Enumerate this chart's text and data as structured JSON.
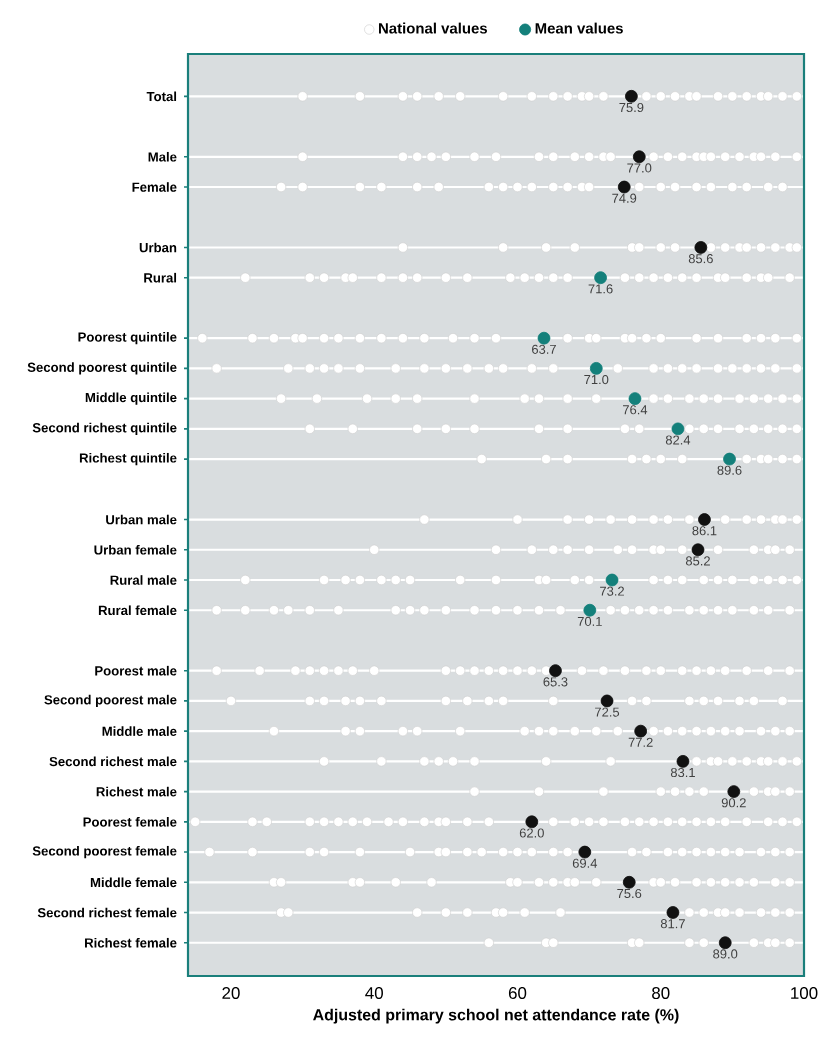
{
  "chart_data": {
    "type": "scatter",
    "orientation": "horizontal",
    "xlabel": "Adjusted primary school net attendance rate (%)",
    "categories": [
      "Total",
      null,
      "Male",
      "Female",
      null,
      "Urban",
      "Rural",
      null,
      "Poorest quintile",
      "Second poorest quintile",
      "Middle quintile",
      "Second richest quintile",
      "Richest quintile",
      null,
      "Urban male",
      "Urban female",
      "Rural male",
      "Rural female",
      null,
      "Poorest male",
      "Second poorest male",
      "Middle male",
      "Second richest male",
      "Richest male",
      "Poorest female",
      "Second poorest female",
      "Middle female",
      "Second richest female",
      "Richest female"
    ],
    "xlim": [
      14,
      100
    ],
    "xticks": [
      20,
      40,
      60,
      80,
      100
    ],
    "grid": "y",
    "legend": "top",
    "marker": "circle",
    "series": [
      {
        "name": "National values",
        "color": "#ffffff",
        "x": [
          "Total",
          "Total",
          "Total",
          "Total",
          "Total",
          "Total",
          "Total",
          "Total",
          "Total",
          "Total",
          "Total",
          "Total",
          "Total",
          "Total",
          "Total",
          "Total",
          "Total",
          "Total",
          "Total",
          "Total",
          "Total",
          "Total",
          "Total",
          "Total",
          "Total",
          "Total",
          "Male",
          "Male",
          "Male",
          "Male",
          "Male",
          "Male",
          "Male",
          "Male",
          "Male",
          "Male",
          "Male",
          "Male",
          "Male",
          "Male",
          "Male",
          "Male",
          "Male",
          "Male",
          "Male",
          "Male",
          "Male",
          "Male",
          "Male",
          "Male",
          "Male",
          "Female",
          "Female",
          "Female",
          "Female",
          "Female",
          "Female",
          "Female",
          "Female",
          "Female",
          "Female",
          "Female",
          "Female",
          "Female",
          "Female",
          "Female",
          "Female",
          "Female",
          "Female",
          "Female",
          "Female",
          "Female",
          "Female",
          "Female",
          "Female",
          "Urban",
          "Urban",
          "Urban",
          "Urban",
          "Urban",
          "Urban",
          "Urban",
          "Urban",
          "Urban",
          "Urban",
          "Urban",
          "Urban",
          "Urban",
          "Urban",
          "Urban",
          "Urban",
          "Rural",
          "Rural",
          "Rural",
          "Rural",
          "Rural",
          "Rural",
          "Rural",
          "Rural",
          "Rural",
          "Rural",
          "Rural",
          "Rural",
          "Rural",
          "Rural",
          "Rural",
          "Rural",
          "Rural",
          "Rural",
          "Rural",
          "Rural",
          "Rural",
          "Rural",
          "Rural",
          "Rural",
          "Rural",
          "Rural",
          "Rural",
          "Poorest quintile",
          "Poorest quintile",
          "Poorest quintile",
          "Poorest quintile",
          "Poorest quintile",
          "Poorest quintile",
          "Poorest quintile",
          "Poorest quintile",
          "Poorest quintile",
          "Poorest quintile",
          "Poorest quintile",
          "Poorest quintile",
          "Poorest quintile",
          "Poorest quintile",
          "Poorest quintile",
          "Poorest quintile",
          "Poorest quintile",
          "Poorest quintile",
          "Poorest quintile",
          "Poorest quintile",
          "Poorest quintile",
          "Poorest quintile",
          "Poorest quintile",
          "Poorest quintile",
          "Poorest quintile",
          "Poorest quintile",
          "Poorest quintile",
          "Second poorest quintile",
          "Second poorest quintile",
          "Second poorest quintile",
          "Second poorest quintile",
          "Second poorest quintile",
          "Second poorest quintile",
          "Second poorest quintile",
          "Second poorest quintile",
          "Second poorest quintile",
          "Second poorest quintile",
          "Second poorest quintile",
          "Second poorest quintile",
          "Second poorest quintile",
          "Second poorest quintile",
          "Second poorest quintile",
          "Second poorest quintile",
          "Second poorest quintile",
          "Second poorest quintile",
          "Second poorest quintile",
          "Second poorest quintile",
          "Second poorest quintile",
          "Second poorest quintile",
          "Second poorest quintile",
          "Second poorest quintile",
          "Second poorest quintile",
          "Middle quintile",
          "Middle quintile",
          "Middle quintile",
          "Middle quintile",
          "Middle quintile",
          "Middle quintile",
          "Middle quintile",
          "Middle quintile",
          "Middle quintile",
          "Middle quintile",
          "Middle quintile",
          "Middle quintile",
          "Middle quintile",
          "Middle quintile",
          "Middle quintile",
          "Middle quintile",
          "Middle quintile",
          "Middle quintile",
          "Middle quintile",
          "Middle quintile",
          "Second richest quintile",
          "Second richest quintile",
          "Second richest quintile",
          "Second richest quintile",
          "Second richest quintile",
          "Second richest quintile",
          "Second richest quintile",
          "Second richest quintile",
          "Second richest quintile",
          "Second richest quintile",
          "Second richest quintile",
          "Second richest quintile",
          "Second richest quintile",
          "Second richest quintile",
          "Second richest quintile",
          "Second richest quintile",
          "Second richest quintile",
          "Richest quintile",
          "Richest quintile",
          "Richest quintile",
          "Richest quintile",
          "Richest quintile",
          "Richest quintile",
          "Richest quintile",
          "Richest quintile",
          "Richest quintile",
          "Richest quintile",
          "Richest quintile",
          "Richest quintile",
          "Urban male",
          "Urban male",
          "Urban male",
          "Urban male",
          "Urban male",
          "Urban male",
          "Urban male",
          "Urban male",
          "Urban male",
          "Urban male",
          "Urban male",
          "Urban male",
          "Urban male",
          "Urban male",
          "Urban male",
          "Urban female",
          "Urban female",
          "Urban female",
          "Urban female",
          "Urban female",
          "Urban female",
          "Urban female",
          "Urban female",
          "Urban female",
          "Urban female",
          "Urban female",
          "Urban female",
          "Urban female",
          "Urban female",
          "Urban female",
          "Urban female",
          "Rural male",
          "Rural male",
          "Rural male",
          "Rural male",
          "Rural male",
          "Rural male",
          "Rural male",
          "Rural male",
          "Rural male",
          "Rural male",
          "Rural male",
          "Rural male",
          "Rural male",
          "Rural male",
          "Rural male",
          "Rural male",
          "Rural male",
          "Rural male",
          "Rural male",
          "Rural male",
          "Rural male",
          "Rural male",
          "Rural male",
          "Rural female",
          "Rural female",
          "Rural female",
          "Rural female",
          "Rural female",
          "Rural female",
          "Rural female",
          "Rural female",
          "Rural female",
          "Rural female",
          "Rural female",
          "Rural female",
          "Rural female",
          "Rural female",
          "Rural female",
          "Rural female",
          "Rural female",
          "Rural female",
          "Rural female",
          "Rural female",
          "Rural female",
          "Rural female",
          "Rural female",
          "Rural female",
          "Rural female",
          "Rural female",
          "Rural female",
          "Poorest male",
          "Poorest male",
          "Poorest male",
          "Poorest male",
          "Poorest male",
          "Poorest male",
          "Poorest male",
          "Poorest male",
          "Poorest male",
          "Poorest male",
          "Poorest male",
          "Poorest male",
          "Poorest male",
          "Poorest male",
          "Poorest male",
          "Poorest male",
          "Poorest male",
          "Poorest male",
          "Poorest male",
          "Poorest male",
          "Poorest male",
          "Poorest male",
          "Poorest male",
          "Poorest male",
          "Poorest male",
          "Poorest male",
          "Poorest male",
          "Poorest male",
          "Second poorest male",
          "Second poorest male",
          "Second poorest male",
          "Second poorest male",
          "Second poorest male",
          "Second poorest male",
          "Second poorest male",
          "Second poorest male",
          "Second poorest male",
          "Second poorest male",
          "Second poorest male",
          "Second poorest male",
          "Second poorest male",
          "Second poorest male",
          "Second poorest male",
          "Second poorest male",
          "Second poorest male",
          "Second poorest male",
          "Second poorest male",
          "Middle male",
          "Middle male",
          "Middle male",
          "Middle male",
          "Middle male",
          "Middle male",
          "Middle male",
          "Middle male",
          "Middle male",
          "Middle male",
          "Middle male",
          "Middle male",
          "Middle male",
          "Middle male",
          "Middle male",
          "Middle male",
          "Middle male",
          "Middle male",
          "Middle male",
          "Middle male",
          "Middle male",
          "Middle male",
          "Second richest male",
          "Second richest male",
          "Second richest male",
          "Second richest male",
          "Second richest male",
          "Second richest male",
          "Second richest male",
          "Second richest male",
          "Second richest male",
          "Second richest male",
          "Second richest male",
          "Second richest male",
          "Second richest male",
          "Second richest male",
          "Second richest male",
          "Second richest male",
          "Second richest male",
          "Richest male",
          "Richest male",
          "Richest male",
          "Richest male",
          "Richest male",
          "Richest male",
          "Richest male",
          "Richest male",
          "Richest male",
          "Richest male",
          "Richest male",
          "Poorest female",
          "Poorest female",
          "Poorest female",
          "Poorest female",
          "Poorest female",
          "Poorest female",
          "Poorest female",
          "Poorest female",
          "Poorest female",
          "Poorest female",
          "Poorest female",
          "Poorest female",
          "Poorest female",
          "Poorest female",
          "Poorest female",
          "Poorest female",
          "Poorest female",
          "Poorest female",
          "Poorest female",
          "Poorest female",
          "Poorest female",
          "Poorest female",
          "Poorest female",
          "Poorest female",
          "Poorest female",
          "Poorest female",
          "Poorest female",
          "Poorest female",
          "Poorest female",
          "Poorest female",
          "Poorest female",
          "Second poorest female",
          "Second poorest female",
          "Second poorest female",
          "Second poorest female",
          "Second poorest female",
          "Second poorest female",
          "Second poorest female",
          "Second poorest female",
          "Second poorest female",
          "Second poorest female",
          "Second poorest female",
          "Second poorest female",
          "Second poorest female",
          "Second poorest female",
          "Second poorest female",
          "Second poorest female",
          "Second poorest female",
          "Second poorest female",
          "Second poorest female",
          "Second poorest female",
          "Second poorest female",
          "Second poorest female",
          "Second poorest female",
          "Second poorest female",
          "Second poorest female",
          "Second poorest female",
          "Middle female",
          "Middle female",
          "Middle female",
          "Middle female",
          "Middle female",
          "Middle female",
          "Middle female",
          "Middle female",
          "Middle female",
          "Middle female",
          "Middle female",
          "Middle female",
          "Middle female",
          "Middle female",
          "Middle female",
          "Middle female",
          "Middle female",
          "Middle female",
          "Middle female",
          "Middle female",
          "Middle female",
          "Middle female",
          "Middle female",
          "Second richest female",
          "Second richest female",
          "Second richest female",
          "Second richest female",
          "Second richest female",
          "Second richest female",
          "Second richest female",
          "Second richest female",
          "Second richest female",
          "Second richest female",
          "Second richest female",
          "Second richest female",
          "Second richest female",
          "Second richest female",
          "Second richest female",
          "Second richest female",
          "Second richest female",
          "Richest female",
          "Richest female",
          "Richest female",
          "Richest female",
          "Richest female",
          "Richest female",
          "Richest female",
          "Richest female",
          "Richest female",
          "Richest female",
          "Richest female"
        ],
        "values": [
          30,
          38,
          44,
          46,
          49,
          52,
          58,
          62,
          65,
          67,
          69,
          70,
          72,
          null,
          78,
          80,
          82,
          84,
          85,
          88,
          90,
          92,
          94,
          95,
          97,
          99,
          30,
          44,
          46,
          48,
          50,
          54,
          57,
          63,
          65,
          68,
          70,
          72,
          73,
          79,
          81,
          83,
          85,
          86,
          87,
          89,
          91,
          93,
          94,
          96,
          99,
          27,
          30,
          38,
          41,
          46,
          49,
          56,
          58,
          60,
          62,
          65,
          67,
          69,
          70,
          null,
          77,
          80,
          82,
          85,
          87,
          90,
          92,
          95,
          97,
          44,
          58,
          64,
          68,
          76,
          77,
          80,
          82,
          87,
          89,
          91,
          92,
          94,
          96,
          98,
          99,
          22,
          31,
          33,
          36,
          37,
          41,
          44,
          46,
          50,
          53,
          59,
          61,
          63,
          65,
          67,
          75,
          77,
          79,
          81,
          83,
          85,
          88,
          89,
          92,
          94,
          95,
          98,
          16,
          23,
          26,
          29,
          30,
          33,
          35,
          38,
          41,
          44,
          47,
          51,
          54,
          57,
          67,
          70,
          71,
          75,
          76,
          78,
          80,
          85,
          88,
          92,
          94,
          96,
          99,
          18,
          28,
          31,
          33,
          35,
          38,
          43,
          47,
          50,
          53,
          56,
          58,
          62,
          65,
          74,
          79,
          81,
          83,
          85,
          88,
          90,
          92,
          94,
          96,
          99,
          27,
          32,
          39,
          43,
          46,
          54,
          61,
          63,
          67,
          71,
          79,
          81,
          84,
          86,
          88,
          91,
          93,
          95,
          97,
          99,
          31,
          37,
          46,
          50,
          54,
          63,
          67,
          75,
          77,
          84,
          86,
          88,
          91,
          93,
          95,
          97,
          99,
          55,
          64,
          67,
          76,
          78,
          80,
          83,
          92,
          94,
          95,
          97,
          99,
          47,
          60,
          67,
          70,
          73,
          76,
          79,
          81,
          84,
          89,
          92,
          94,
          96,
          97,
          99,
          40,
          57,
          62,
          65,
          67,
          70,
          74,
          76,
          79,
          80,
          83,
          88,
          93,
          95,
          96,
          98,
          22,
          33,
          36,
          38,
          41,
          43,
          45,
          52,
          57,
          63,
          64,
          68,
          70,
          79,
          81,
          83,
          86,
          88,
          90,
          93,
          95,
          97,
          99,
          18,
          22,
          26,
          28,
          31,
          35,
          43,
          45,
          47,
          50,
          54,
          57,
          60,
          63,
          66,
          73,
          75,
          77,
          79,
          81,
          84,
          86,
          88,
          90,
          93,
          95,
          98,
          18,
          24,
          29,
          31,
          33,
          35,
          37,
          40,
          50,
          52,
          54,
          56,
          58,
          60,
          62,
          64,
          69,
          72,
          75,
          78,
          80,
          83,
          85,
          87,
          89,
          92,
          95,
          98,
          20,
          31,
          33,
          36,
          38,
          41,
          50,
          53,
          56,
          58,
          65,
          76,
          78,
          84,
          86,
          88,
          91,
          93,
          97,
          26,
          36,
          38,
          44,
          46,
          52,
          61,
          63,
          65,
          68,
          71,
          74,
          79,
          81,
          83,
          85,
          87,
          89,
          91,
          94,
          96,
          98,
          33,
          41,
          47,
          49,
          51,
          54,
          64,
          73,
          85,
          87,
          88,
          90,
          92,
          94,
          95,
          97,
          99,
          54,
          63,
          72,
          80,
          82,
          84,
          86,
          93,
          95,
          96,
          98,
          15,
          23,
          25,
          31,
          33,
          35,
          37,
          39,
          42,
          44,
          47,
          49,
          50,
          53,
          56,
          65,
          68,
          70,
          72,
          75,
          77,
          79,
          81,
          83,
          85,
          87,
          89,
          92,
          95,
          97,
          99,
          17,
          23,
          31,
          33,
          38,
          45,
          49,
          50,
          53,
          55,
          58,
          60,
          62,
          65,
          67,
          76,
          78,
          81,
          83,
          85,
          87,
          89,
          91,
          94,
          96,
          98,
          26,
          27,
          37,
          38,
          43,
          48,
          59,
          60,
          63,
          65,
          67,
          68,
          71,
          79,
          80,
          82,
          85,
          87,
          89,
          91,
          93,
          96,
          98,
          27,
          28,
          46,
          50,
          53,
          57,
          58,
          61,
          66,
          84,
          86,
          88,
          89,
          91,
          94,
          96,
          98,
          56,
          64,
          65,
          76,
          77,
          84,
          86,
          93,
          95,
          96,
          98
        ]
      },
      {
        "name": "Mean values",
        "color": "#14807b",
        "colors": [
          "#111111",
          null,
          "#111111",
          "#111111",
          null,
          "#111111",
          "#14807b",
          null,
          "#14807b",
          "#14807b",
          "#14807b",
          "#14807b",
          "#14807b",
          null,
          "#111111",
          "#111111",
          "#14807b",
          "#14807b",
          null,
          "#111111",
          "#111111",
          "#111111",
          "#111111",
          "#111111",
          "#111111",
          "#111111",
          "#111111",
          "#111111",
          "#111111"
        ],
        "values": [
          75.9,
          null,
          77.0,
          74.9,
          null,
          85.6,
          71.6,
          null,
          63.7,
          71.0,
          76.4,
          82.4,
          89.6,
          null,
          86.1,
          85.2,
          73.2,
          70.1,
          null,
          65.3,
          72.5,
          77.2,
          83.1,
          90.2,
          62.0,
          69.4,
          75.6,
          81.7,
          89.0
        ],
        "value_labels": [
          "75.9",
          null,
          "77.0",
          "74.9",
          null,
          "85.6",
          "71.6",
          null,
          "63.7",
          "71.0",
          "76.4",
          "82.4",
          "89.6",
          null,
          "86.1",
          "85.2",
          "73.2",
          "70.1",
          null,
          "65.3",
          "72.5",
          "77.2",
          "83.1",
          "90.2",
          "62.0",
          "69.4",
          "75.6",
          "81.7",
          "89.0"
        ]
      }
    ]
  }
}
